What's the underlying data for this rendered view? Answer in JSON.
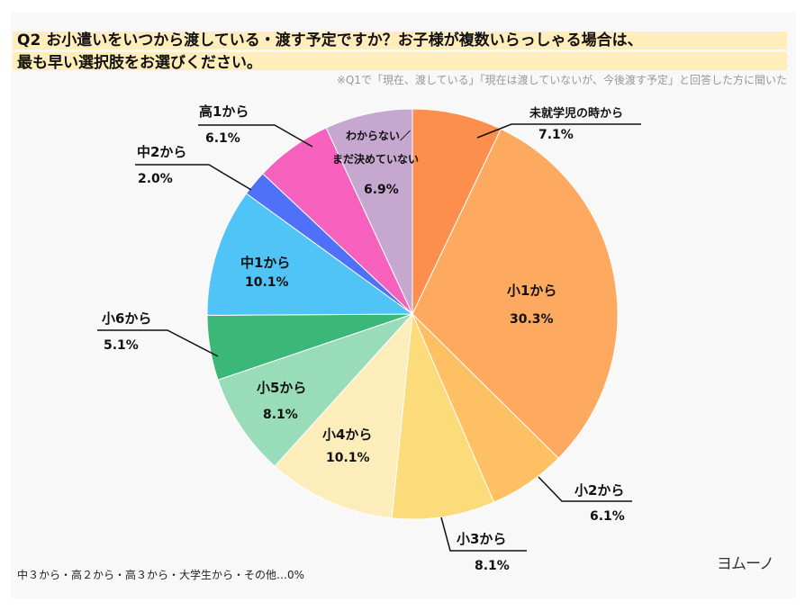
{
  "title_line1": "Q2 お小遣いをいつから渡している・渡す予定ですか？お子様が複数いらっしゃる場合は、",
  "title_line2": "最も早い選択肢をお選びください。",
  "subtitle": "※Q1で「現在、渡している」「現在は渡していないが、今後渡す予定」と回答した方に聞いた",
  "footnote": "中３から・高２から・高３から・大学生から・その他…0%",
  "logo": "ヨムーノ",
  "chart_data": {
    "type": "pie",
    "start": "top",
    "direction": "clockwise",
    "slices": [
      {
        "label": "未就学児の時から",
        "value": 7.1,
        "pct": "7.1%",
        "color": "#fc8f4e"
      },
      {
        "label": "小1から",
        "value": 30.3,
        "pct": "30.3%",
        "color": "#fda95f"
      },
      {
        "label": "小2から",
        "value": 6.1,
        "pct": "6.1%",
        "color": "#fec062"
      },
      {
        "label": "小3から",
        "value": 8.1,
        "pct": "8.1%",
        "color": "#fcdb7b"
      },
      {
        "label": "小4から",
        "value": 10.1,
        "pct": "10.1%",
        "color": "#fdedbb"
      },
      {
        "label": "小5から",
        "value": 8.1,
        "pct": "8.1%",
        "color": "#98dcb9"
      },
      {
        "label": "小6から",
        "value": 5.1,
        "pct": "5.1%",
        "color": "#3bb877"
      },
      {
        "label": "中1から",
        "value": 10.1,
        "pct": "10.1%",
        "color": "#50c4f7"
      },
      {
        "label": "中2から",
        "value": 2.0,
        "pct": "2.0%",
        "color": "#4f70f8"
      },
      {
        "label": "高1から",
        "value": 6.1,
        "pct": "6.1%",
        "color": "#f661be"
      },
      {
        "label": "わからない／まだ決めていない",
        "label_line1": "わからない／",
        "label_line2": "まだ決めていない",
        "value": 6.9,
        "pct": "6.9%",
        "color": "#c6a7d0"
      }
    ]
  }
}
